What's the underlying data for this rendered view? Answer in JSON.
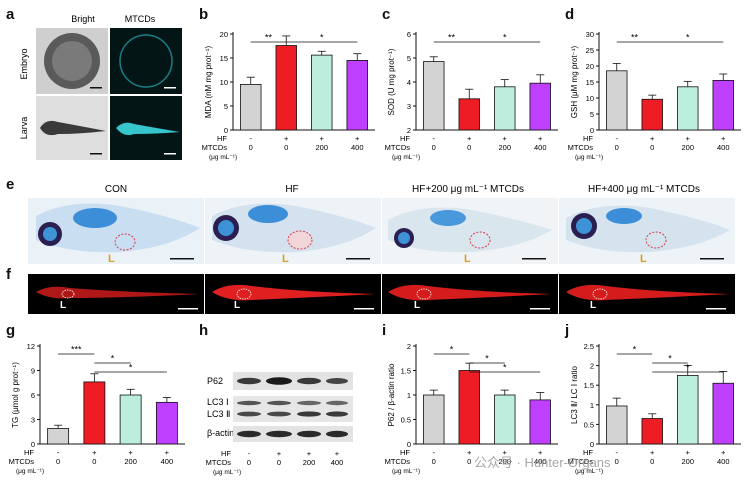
{
  "figure": {
    "panel_letters": [
      "a",
      "b",
      "c",
      "d",
      "e",
      "f",
      "g",
      "h",
      "i",
      "j"
    ],
    "a": {
      "col_labels": [
        "Bright",
        "MTCDs"
      ],
      "row_labels": [
        "Embryo",
        "Larva"
      ]
    },
    "e": {
      "titles": [
        "CON",
        "HF",
        "HF+200 μg mL⁻¹ MTCDs",
        "HF+400 μg mL⁻¹ MTCDs"
      ],
      "liver_marker": "L"
    },
    "f": {
      "liver_marker": "L"
    },
    "h": {
      "bands": [
        "P62",
        "LC3 Ⅰ",
        "LC3 Ⅱ",
        "β-actin"
      ]
    },
    "treatment_rows": {
      "hf_label": "HF",
      "mtcds_label": "MTCDs",
      "unit_label": "(μg mL⁻¹)",
      "hf": [
        "-",
        "+",
        "+",
        "+"
      ],
      "mtcds": [
        "0",
        "0",
        "200",
        "400"
      ]
    },
    "watermark": "公众号 · Hunter-Organs"
  },
  "colors": {
    "con": "#d3d3d3",
    "hf": "#ee1c25",
    "mt200": "#bdeedd",
    "mt400": "#bf3fff"
  },
  "chart_data": [
    {
      "id": "b",
      "type": "bar",
      "ylabel": "MDA (nM mg prot⁻¹)",
      "ylim": [
        0,
        20
      ],
      "yticks": [
        0,
        5,
        10,
        15,
        20
      ],
      "values": [
        9.5,
        17.6,
        15.6,
        14.5
      ],
      "errors": [
        1.5,
        2.0,
        0.8,
        1.4
      ],
      "sig": [
        {
          "from": 0,
          "to": 1,
          "label": "**",
          "level": 0
        },
        {
          "from": 1,
          "to": 3,
          "label": "*",
          "level": 0
        }
      ]
    },
    {
      "id": "c",
      "type": "bar",
      "ylabel": "SOD (U mg prot⁻¹)",
      "ylim": [
        2,
        6
      ],
      "yticks": [
        2,
        3,
        4,
        5,
        6
      ],
      "values": [
        4.85,
        3.3,
        3.8,
        3.95
      ],
      "errors": [
        0.2,
        0.4,
        0.3,
        0.35
      ],
      "sig": [
        {
          "from": 0,
          "to": 1,
          "label": "**",
          "level": 0
        },
        {
          "from": 1,
          "to": 3,
          "label": "*",
          "level": 0
        }
      ]
    },
    {
      "id": "d",
      "type": "bar",
      "ylabel": "GSH (μM mg prot⁻¹)",
      "ylim": [
        0,
        30
      ],
      "yticks": [
        0,
        5,
        10,
        15,
        20,
        25,
        30
      ],
      "values": [
        18.5,
        9.6,
        13.5,
        15.5
      ],
      "errors": [
        2.3,
        1.3,
        1.7,
        2.0
      ],
      "sig": [
        {
          "from": 0,
          "to": 1,
          "label": "**",
          "level": 0
        },
        {
          "from": 1,
          "to": 3,
          "label": "*",
          "level": 0
        }
      ]
    },
    {
      "id": "g",
      "type": "bar",
      "ylabel": "TG (μmol g prot⁻¹)",
      "ylim": [
        0,
        12
      ],
      "yticks": [
        0,
        3,
        6,
        9,
        12
      ],
      "values": [
        1.9,
        7.6,
        6.0,
        5.1
      ],
      "errors": [
        0.4,
        1.0,
        0.7,
        0.6
      ],
      "sig": [
        {
          "from": 0,
          "to": 1,
          "label": "***",
          "level": 0
        },
        {
          "from": 1,
          "to": 2,
          "label": "*",
          "level": 1
        },
        {
          "from": 1,
          "to": 3,
          "label": "*",
          "level": 2
        }
      ]
    },
    {
      "id": "i",
      "type": "bar",
      "ylabel": "P62 / β-actin ratio",
      "ylim": [
        0.0,
        2.0
      ],
      "yticks": [
        0.0,
        0.5,
        1.0,
        1.5,
        2.0
      ],
      "values": [
        1.0,
        1.5,
        1.0,
        0.9
      ],
      "errors": [
        0.1,
        0.15,
        0.1,
        0.15
      ],
      "sig": [
        {
          "from": 0,
          "to": 1,
          "label": "*",
          "level": 0
        },
        {
          "from": 1,
          "to": 2,
          "label": "*",
          "level": 1
        },
        {
          "from": 1,
          "to": 3,
          "label": "*",
          "level": 2
        }
      ]
    },
    {
      "id": "j",
      "type": "bar",
      "ylabel": "LC3 Ⅱ/ LC Ⅰ ratio",
      "ylim": [
        0.0,
        2.5
      ],
      "yticks": [
        0.0,
        0.5,
        1.0,
        1.5,
        2.0,
        2.5
      ],
      "values": [
        0.97,
        0.65,
        1.75,
        1.55
      ],
      "errors": [
        0.2,
        0.12,
        0.25,
        0.3
      ],
      "sig": [
        {
          "from": 0,
          "to": 1,
          "label": "*",
          "level": 0
        },
        {
          "from": 1,
          "to": 2,
          "label": "*",
          "level": 1
        },
        {
          "from": 1,
          "to": 3,
          "label": "*",
          "level": 2
        }
      ]
    }
  ]
}
